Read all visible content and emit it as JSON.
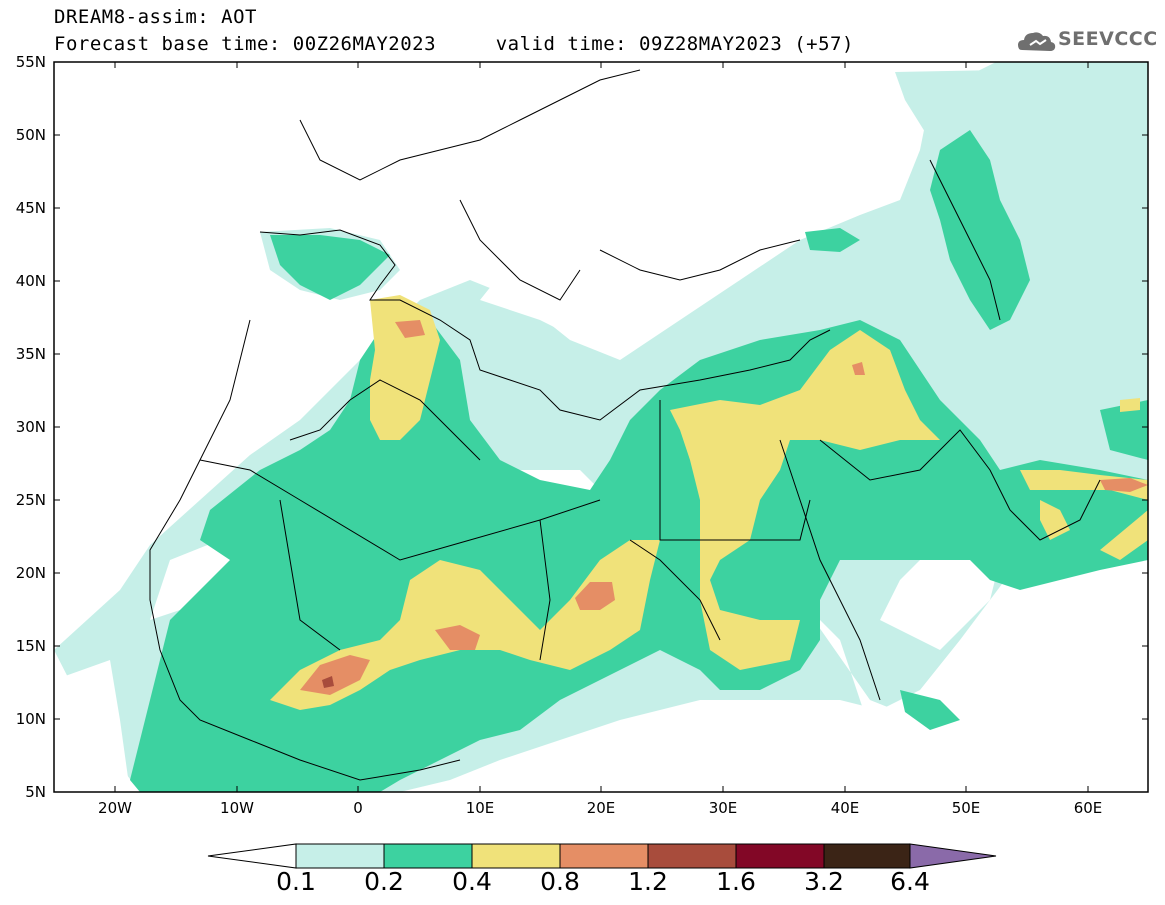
{
  "title": {
    "line1": "DREAM8-assim: AOT",
    "line2": "Forecast base time: 00Z26MAY2023     valid time: 09Z28MAY2023 (+57)"
  },
  "logo": {
    "text": "SEEVCCC",
    "icon": "cloud-icon"
  },
  "map": {
    "projection": "lat-lon",
    "lon_range": [
      -25,
      65
    ],
    "lat_range": [
      5,
      55
    ],
    "y_ticks": [
      "55N",
      "50N",
      "45N",
      "40N",
      "35N",
      "30N",
      "25N",
      "20N",
      "15N",
      "10N",
      "5N"
    ],
    "x_ticks": [
      "20W",
      "10W",
      "0",
      "10E",
      "20E",
      "30E",
      "40E",
      "50E",
      "60E"
    ]
  },
  "colorbar": {
    "labels": [
      "0.1",
      "0.2",
      "0.4",
      "0.8",
      "1.2",
      "1.6",
      "3.2",
      "6.4"
    ],
    "colors": [
      "#c6efe8",
      "#3dd2a0",
      "#f0e27a",
      "#e58e65",
      "#a84c3c",
      "#820726",
      "#3b2416",
      "#8a6aa9"
    ]
  }
}
